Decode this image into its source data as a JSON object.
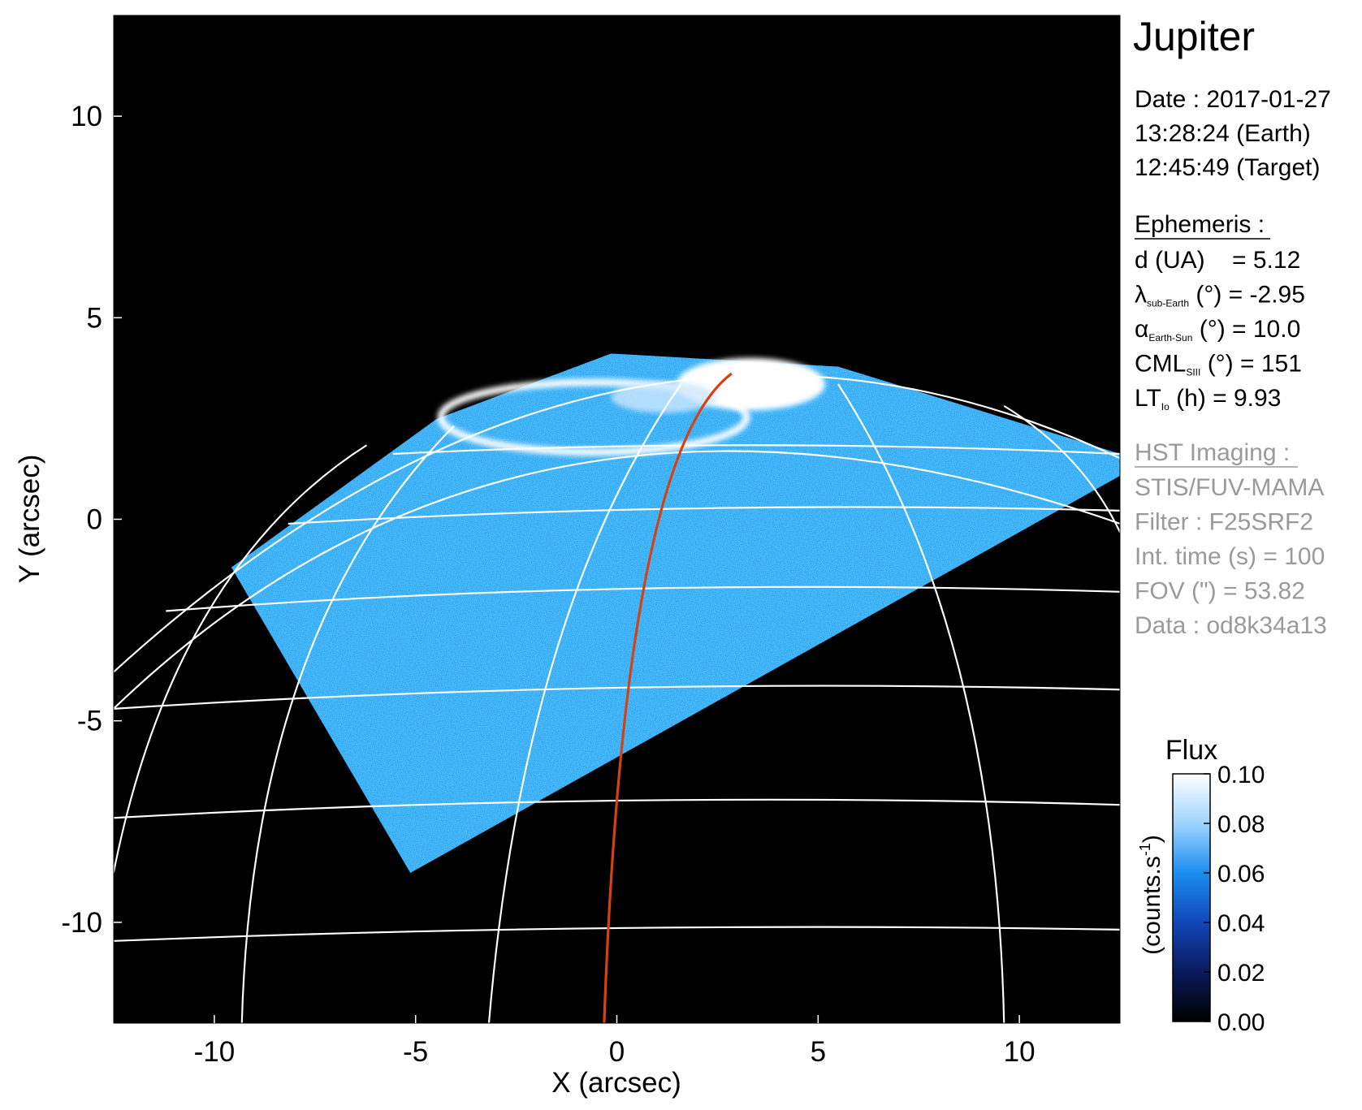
{
  "chart_data": {
    "type": "image",
    "xlabel": "X (arcsec)",
    "ylabel": "Y (arcsec)",
    "xlim": [
      -12.5,
      12.5
    ],
    "ylim": [
      -12.5,
      12.5
    ],
    "xticks": [
      -10,
      -5,
      0,
      5,
      10
    ],
    "yticks": [
      -10,
      -5,
      0,
      5,
      10
    ],
    "colorbar": {
      "title": "Flux",
      "label": "(counts.s",
      "label_sup": "-1",
      "label_end": ")",
      "clim": [
        0,
        0.1
      ],
      "ticks": [
        {
          "value": 0,
          "label": "0.00"
        },
        {
          "value": 0.02,
          "label": "0.02"
        },
        {
          "value": 0.04,
          "label": "0.04"
        },
        {
          "value": 0.06,
          "label": "0.06"
        },
        {
          "value": 0.08,
          "label": "0.08"
        },
        {
          "value": 0.1,
          "label": "0.10"
        }
      ],
      "colors": [
        "#000000",
        "#0a1a5c",
        "#1046b8",
        "#1a8ef0",
        "#9fd4ff",
        "#ffffff"
      ]
    }
  },
  "info": {
    "title": "Jupiter",
    "date_lines": [
      "Date : 2017-01-27",
      "13:28:24 (Earth)",
      "12:45:49 (Target)"
    ],
    "ephemeris": {
      "heading": "Ephemeris :",
      "rows": [
        {
          "main": "d (UA)    = 5.12"
        },
        {
          "main": "λ",
          "sub": "sub-Earth",
          "rest": " (°) = -2.95"
        },
        {
          "main": "α",
          "sub": "Earth-Sun",
          "rest": " (°) = 10.0"
        },
        {
          "main": "CML",
          "sub": "SIII",
          "rest": " (°) = 151"
        },
        {
          "main": "LT",
          "sub": "Io",
          "rest": " (h) = 9.93"
        }
      ]
    },
    "imaging": {
      "heading": "HST Imaging :",
      "lines": [
        "STIS/FUV-MAMA",
        "Filter : F25SRF2",
        "Int. time (s) = 100",
        "FOV (\") = 53.82",
        "Data : od8k34a13"
      ]
    }
  }
}
